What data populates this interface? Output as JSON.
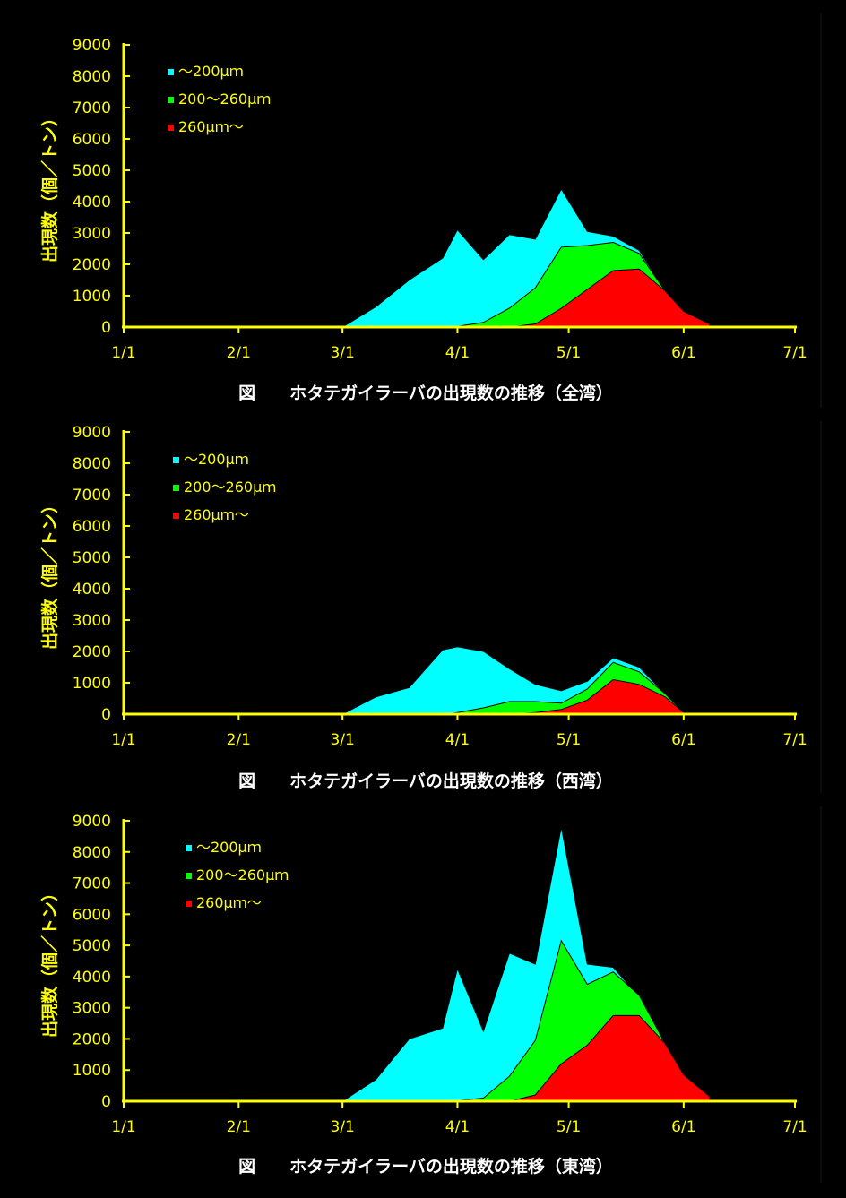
{
  "colors": {
    "background": "#000000",
    "axis": "#ffff00",
    "caption": "#ffffff",
    "small": "#00ffff",
    "medium": "#00ff00",
    "large": "#ff0000"
  },
  "chart_data": [
    {
      "type": "area",
      "stacked": false,
      "title": "図　　ホタテガイラーバの出現数の推移（全湾）",
      "ylabel": "出現数（個／トン）",
      "xlabel": "",
      "ylim": [
        0,
        9000
      ],
      "yticks": [
        "9000",
        "8000",
        "7000",
        "6000",
        "5000",
        "4000",
        "3000",
        "2000",
        "1000",
        "0"
      ],
      "xticks": [
        "1/1",
        "2/1",
        "3/1",
        "4/1",
        "5/1",
        "6/1",
        "7/1"
      ],
      "legend_position": "top-left",
      "series": [
        {
          "name": "～200μｍ",
          "color": "#00ffff",
          "x": [
            "1/1",
            "3/1",
            "3/10",
            "3/19",
            "3/28",
            "4/1",
            "4/8",
            "4/15",
            "4/22",
            "4/29",
            "5/6",
            "5/13",
            "5/20",
            "5/27",
            "6/1",
            "6/8"
          ],
          "values": [
            0,
            0,
            650,
            1500,
            2200,
            3100,
            2150,
            2950,
            2800,
            4400,
            3050,
            2900,
            2450,
            1150,
            500,
            100
          ]
        },
        {
          "name": "200～260μｍ",
          "color": "#00ff00",
          "x": [
            "1/1",
            "3/28",
            "4/1",
            "4/8",
            "4/15",
            "4/22",
            "4/29",
            "5/6",
            "5/13",
            "5/20",
            "5/27",
            "6/1",
            "6/8"
          ],
          "values": [
            0,
            0,
            20,
            150,
            600,
            1250,
            2550,
            2600,
            2700,
            2350,
            1150,
            500,
            100
          ]
        },
        {
          "name": "260μｍ～",
          "color": "#ff0000",
          "x": [
            "1/1",
            "4/15",
            "4/22",
            "4/29",
            "5/6",
            "5/13",
            "5/20",
            "5/27",
            "6/1",
            "6/8"
          ],
          "values": [
            0,
            0,
            100,
            600,
            1200,
            1800,
            1850,
            1150,
            500,
            100
          ]
        }
      ]
    },
    {
      "type": "area",
      "stacked": false,
      "title": "図　　ホタテガイラーバの出現数の推移（西湾）",
      "ylabel": "出現数（個／トン）",
      "xlabel": "",
      "ylim": [
        0,
        9000
      ],
      "yticks": [
        "9000",
        "8000",
        "7000",
        "6000",
        "5000",
        "4000",
        "3000",
        "2000",
        "1000",
        "0"
      ],
      "xticks": [
        "1/1",
        "2/1",
        "3/1",
        "4/1",
        "5/1",
        "6/1",
        "7/1"
      ],
      "legend_position": "top-left",
      "series": [
        {
          "name": "～200μｍ",
          "color": "#00ffff",
          "x": [
            "1/1",
            "3/1",
            "3/10",
            "3/19",
            "3/28",
            "4/1",
            "4/8",
            "4/15",
            "4/22",
            "4/29",
            "5/6",
            "5/13",
            "5/20",
            "5/27",
            "6/1",
            "6/8"
          ],
          "values": [
            0,
            0,
            550,
            850,
            2050,
            2150,
            2000,
            1450,
            950,
            750,
            1050,
            1800,
            1500,
            650,
            50,
            30
          ]
        },
        {
          "name": "200～260μｍ",
          "color": "#00ff00",
          "x": [
            "1/1",
            "3/28",
            "4/1",
            "4/8",
            "4/15",
            "4/22",
            "4/29",
            "5/6",
            "5/13",
            "5/20",
            "5/27",
            "6/1",
            "6/8"
          ],
          "values": [
            0,
            0,
            50,
            200,
            400,
            400,
            350,
            800,
            1650,
            1350,
            650,
            50,
            30
          ]
        },
        {
          "name": "260μｍ～",
          "color": "#ff0000",
          "x": [
            "1/1",
            "4/15",
            "4/22",
            "4/29",
            "5/6",
            "5/13",
            "5/20",
            "5/27",
            "6/1",
            "6/8"
          ],
          "values": [
            0,
            0,
            50,
            150,
            450,
            1100,
            950,
            550,
            50,
            30
          ]
        }
      ]
    },
    {
      "type": "area",
      "stacked": false,
      "title": "図　　ホタテガイラーバの出現数の推移（東湾）",
      "ylabel": "出現数（個／トン）",
      "xlabel": "",
      "ylim": [
        0,
        9000
      ],
      "yticks": [
        "9000",
        "8000",
        "7000",
        "6000",
        "5000",
        "4000",
        "3000",
        "2000",
        "1000",
        "0"
      ],
      "xticks": [
        "1/1",
        "2/1",
        "3/1",
        "4/1",
        "5/1",
        "6/1",
        "7/1"
      ],
      "legend_position": "top-left",
      "series": [
        {
          "name": "～200μｍ",
          "color": "#00ffff",
          "x": [
            "1/1",
            "3/1",
            "3/10",
            "3/19",
            "3/28",
            "4/1",
            "4/8",
            "4/15",
            "4/22",
            "4/29",
            "5/6",
            "5/13",
            "5/20",
            "5/27",
            "6/1",
            "6/8"
          ],
          "values": [
            0,
            0,
            700,
            2000,
            2350,
            4250,
            2250,
            4750,
            4400,
            8800,
            4400,
            4300,
            3350,
            1850,
            850,
            150
          ]
        },
        {
          "name": "200～260μｍ",
          "color": "#00ff00",
          "x": [
            "1/1",
            "3/28",
            "4/1",
            "4/8",
            "4/15",
            "4/22",
            "4/29",
            "5/6",
            "5/13",
            "5/20",
            "5/27",
            "6/1",
            "6/8"
          ],
          "values": [
            0,
            0,
            20,
            100,
            800,
            1950,
            5150,
            3750,
            4150,
            3400,
            1850,
            850,
            150
          ]
        },
        {
          "name": "260μｍ～",
          "color": "#ff0000",
          "x": [
            "1/1",
            "4/15",
            "4/22",
            "4/29",
            "5/6",
            "5/13",
            "5/20",
            "5/27",
            "6/1",
            "6/8"
          ],
          "values": [
            0,
            0,
            200,
            1200,
            1800,
            2750,
            2750,
            1850,
            850,
            150
          ]
        }
      ]
    }
  ]
}
